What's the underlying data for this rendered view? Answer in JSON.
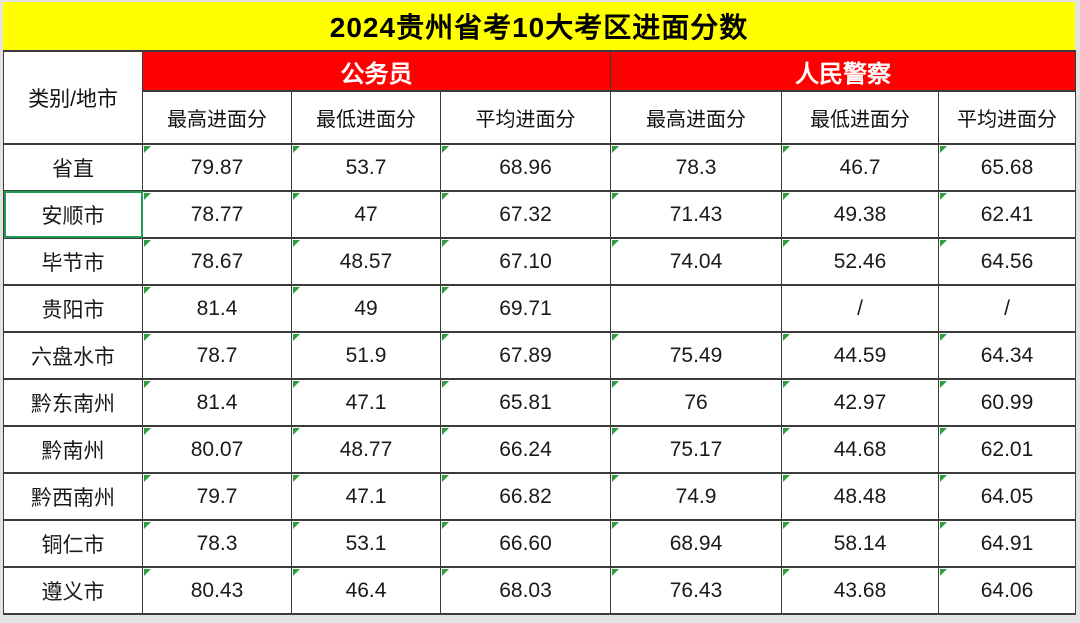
{
  "title": "2024贵州省考10大考区进面分数",
  "colors": {
    "title_bg": "#FFFF00",
    "group_header_bg": "#FE0000",
    "group_header_text": "#FFFFFF",
    "cell_bg": "#FFFFFF",
    "grid_border": "#3B3B3B",
    "selection_outline_green": "#1F9D55",
    "error_triangle_green": "#2F9E3E"
  },
  "icons": {
    "error_indicator": "green-triangle-icon"
  },
  "table": {
    "corner_header": "类别/地市",
    "groups": [
      {
        "label": "公务员",
        "sub": [
          "最高进面分",
          "最低进面分",
          "平均进面分"
        ]
      },
      {
        "label": "人民警察",
        "sub": [
          "最高进面分",
          "最低进面分",
          "平均进面分"
        ]
      }
    ],
    "rows": [
      {
        "region": "省直",
        "selected": false,
        "values": [
          "79.87",
          "53.7",
          "68.96",
          "78.3",
          "46.7",
          "65.68"
        ]
      },
      {
        "region": "安顺市",
        "selected": true,
        "values": [
          "78.77",
          "47",
          "67.32",
          "71.43",
          "49.38",
          "62.41"
        ]
      },
      {
        "region": "毕节市",
        "selected": false,
        "values": [
          "78.67",
          "48.57",
          "67.10",
          "74.04",
          "52.46",
          "64.56"
        ]
      },
      {
        "region": "贵阳市",
        "selected": false,
        "values": [
          "81.4",
          "49",
          "69.71",
          "",
          "/",
          "/"
        ]
      },
      {
        "region": "六盘水市",
        "selected": false,
        "values": [
          "78.7",
          "51.9",
          "67.89",
          "75.49",
          "44.59",
          "64.34"
        ]
      },
      {
        "region": "黔东南州",
        "selected": false,
        "values": [
          "81.4",
          "47.1",
          "65.81",
          "76",
          "42.97",
          "60.99"
        ]
      },
      {
        "region": "黔南州",
        "selected": false,
        "values": [
          "80.07",
          "48.77",
          "66.24",
          "75.17",
          "44.68",
          "62.01"
        ]
      },
      {
        "region": "黔西南州",
        "selected": false,
        "values": [
          "79.7",
          "47.1",
          "66.82",
          "74.9",
          "48.48",
          "64.05"
        ]
      },
      {
        "region": "铜仁市",
        "selected": false,
        "values": [
          "78.3",
          "53.1",
          "66.60",
          "68.94",
          "58.14",
          "64.91"
        ]
      },
      {
        "region": "遵义市",
        "selected": false,
        "values": [
          "80.43",
          "46.4",
          "68.03",
          "76.43",
          "43.68",
          "64.06"
        ]
      }
    ]
  }
}
